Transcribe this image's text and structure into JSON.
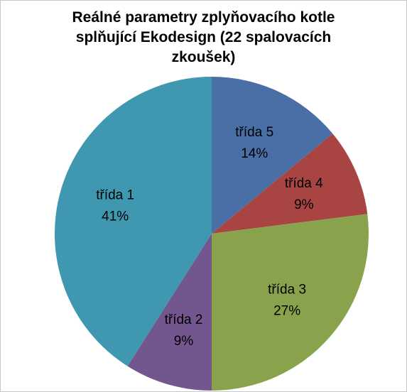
{
  "chart_data": {
    "type": "pie",
    "title": "Reálné parametry zplyňovacího kotle splňující Ekodesign (22 spalovacích zkoušek)",
    "categories": [
      "třída 5",
      "třída 4",
      "třída 3",
      "třída 2",
      "třída 1"
    ],
    "values": [
      14,
      9,
      27,
      9,
      41
    ],
    "value_labels": [
      "14%",
      "9%",
      "27%",
      "9%",
      "41%"
    ],
    "colors": [
      "#4a6fa6",
      "#a84543",
      "#88a34b",
      "#72578f",
      "#3f97b0"
    ]
  }
}
